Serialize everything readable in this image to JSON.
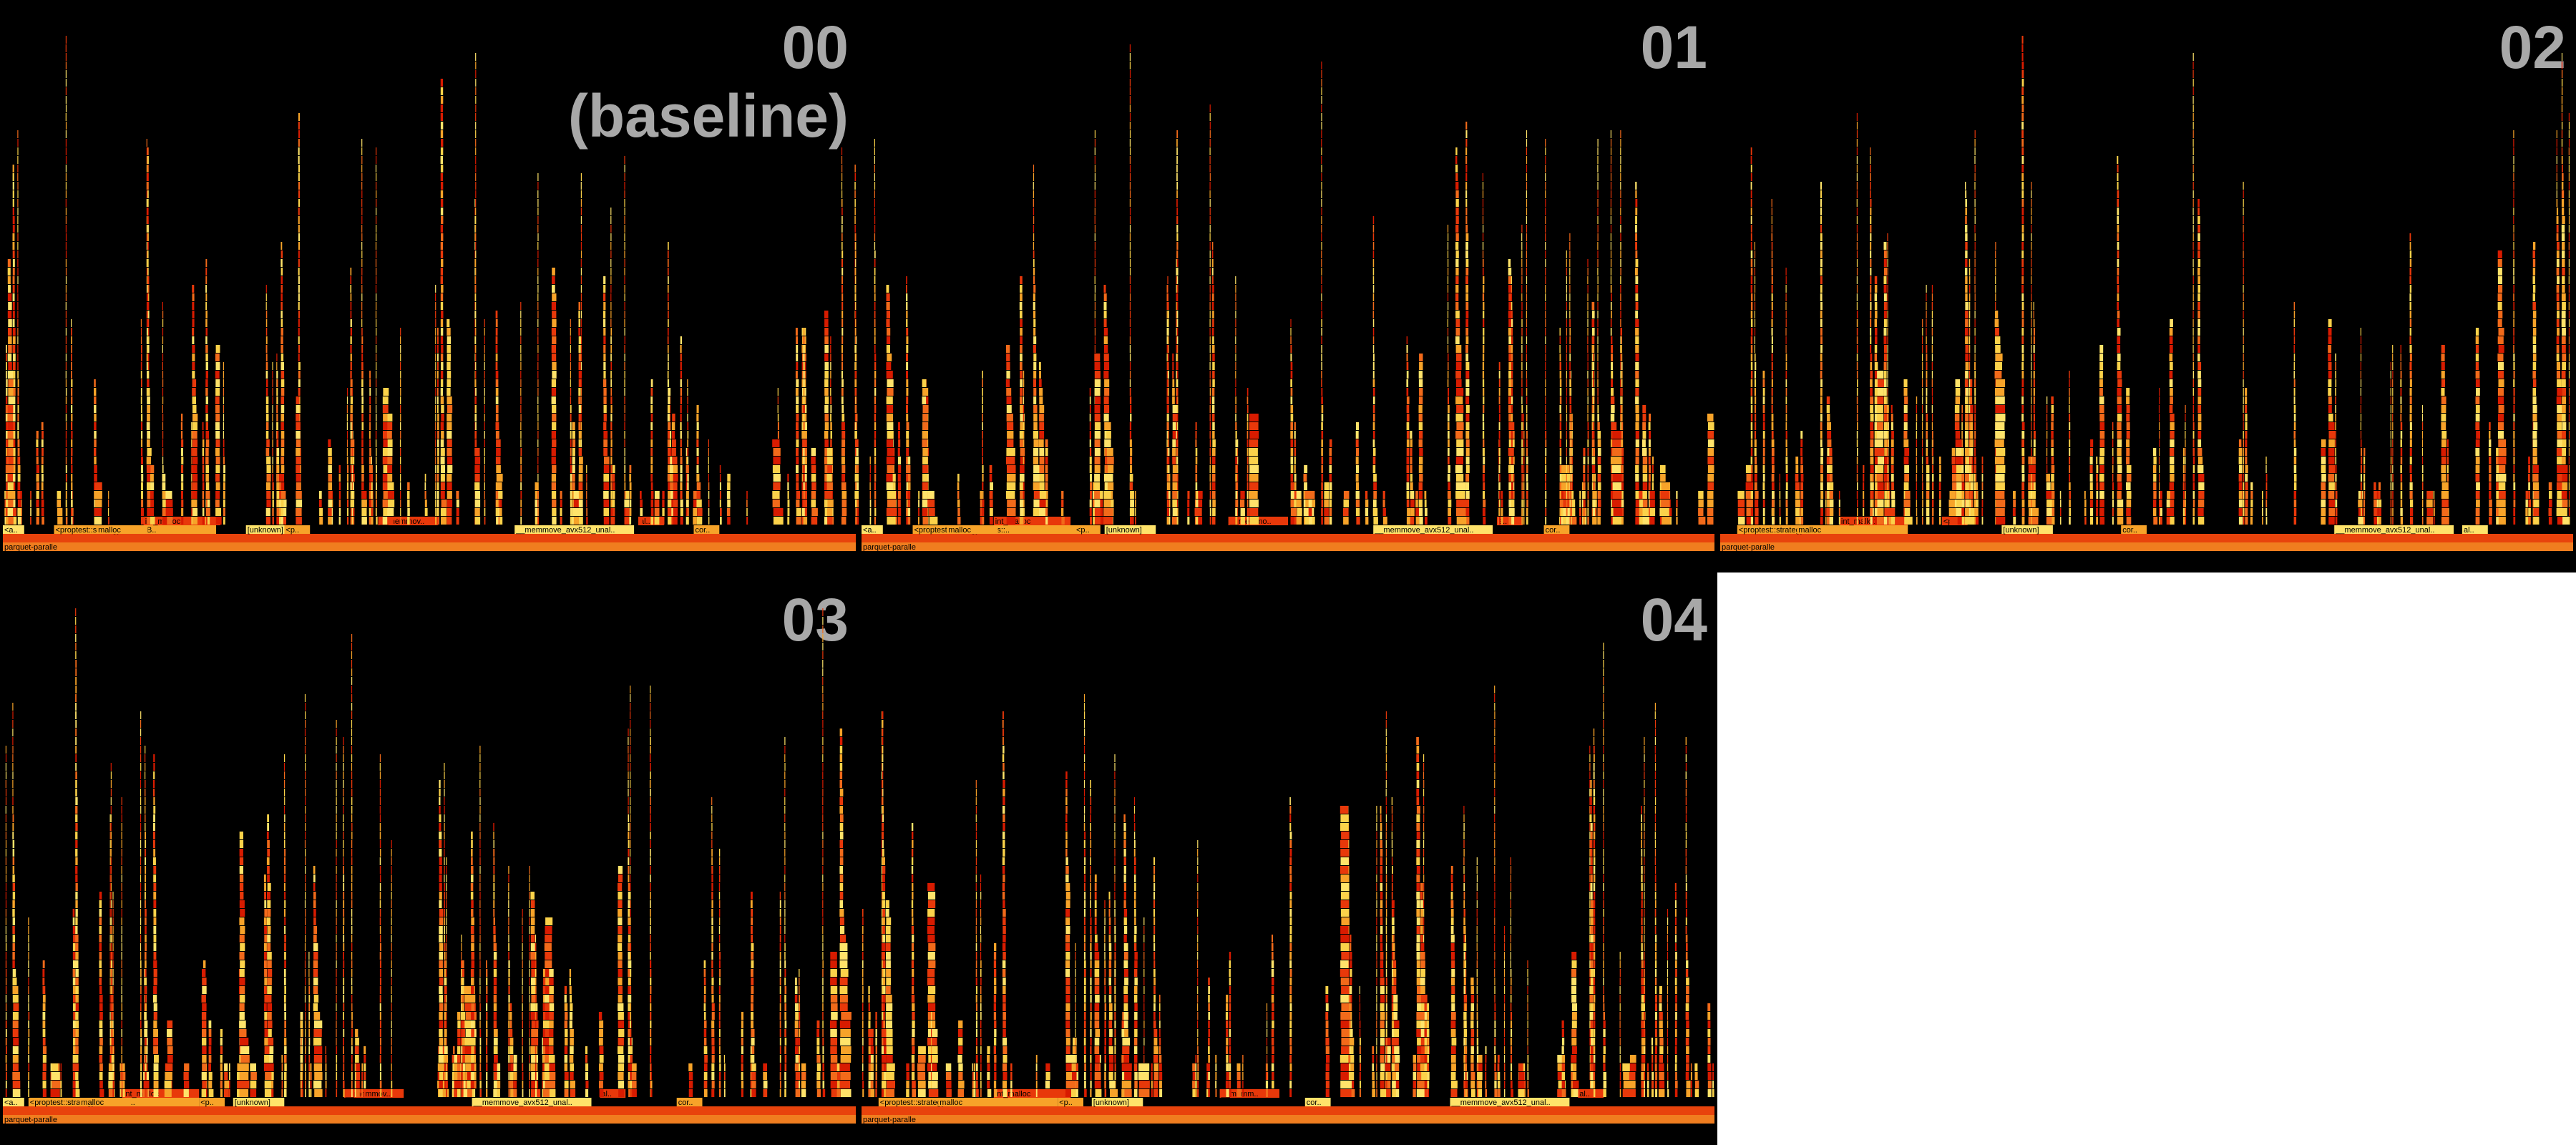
{
  "figure": {
    "background": "#000000",
    "blank_cell_color": "#ffffff",
    "title_color": "#a8a8a8",
    "palette": [
      "#d81b00",
      "#e8380a",
      "#f26a1a",
      "#f7a329",
      "#fbd24a",
      "#ffe36a"
    ]
  },
  "panels": [
    {
      "title": "00\n(baseline)",
      "root_label": "parquet-paralle",
      "frames": [
        {
          "label": "<proptest::strategy::traits::B..",
          "start": 0.06,
          "width": 0.19
        },
        {
          "label": "__memmove_avx512_unal..",
          "start": 0.6,
          "width": 0.14
        },
        {
          "label": "int_malloc",
          "start": 0.165,
          "width": 0.09
        },
        {
          "label": "malloc",
          "start": 0.11,
          "width": 0.06
        },
        {
          "label": "[unknown]",
          "start": 0.285,
          "width": 0.06
        },
        {
          "label": "__memmov..",
          "start": 0.44,
          "width": 0.07
        },
        {
          "label": "<p..",
          "start": 0.33,
          "width": 0.03
        },
        {
          "label": "<a..",
          "start": 0.0,
          "width": 0.025
        },
        {
          "label": "al..",
          "start": 0.745,
          "width": 0.03
        },
        {
          "label": "cor..",
          "start": 0.81,
          "width": 0.03
        }
      ]
    },
    {
      "title": "01",
      "root_label": "parquet-paralle",
      "frames": [
        {
          "label": "<proptest::strategy::traits::..",
          "start": 0.06,
          "width": 0.19
        },
        {
          "label": "__memmove_avx512_unal..",
          "start": 0.6,
          "width": 0.14
        },
        {
          "label": "int_malloc",
          "start": 0.155,
          "width": 0.09
        },
        {
          "label": "malloc",
          "start": 0.1,
          "width": 0.06
        },
        {
          "label": "[unknown]",
          "start": 0.285,
          "width": 0.06
        },
        {
          "label": "__memmo..",
          "start": 0.43,
          "width": 0.07
        },
        {
          "label": "<p..",
          "start": 0.25,
          "width": 0.03
        },
        {
          "label": "<a..",
          "start": 0.0,
          "width": 0.025
        },
        {
          "label": "a..",
          "start": 0.745,
          "width": 0.03
        },
        {
          "label": "cor..",
          "start": 0.8,
          "width": 0.03
        }
      ]
    },
    {
      "title": "02",
      "root_label": "parquet-paralle",
      "frames": [
        {
          "label": "<proptest::strategy::traits::Bo..",
          "start": 0.02,
          "width": 0.2
        },
        {
          "label": "__memmove_avx512_unal..",
          "start": 0.72,
          "width": 0.14
        },
        {
          "label": "int_malloc",
          "start": 0.14,
          "width": 0.08
        },
        {
          "label": "malloc",
          "start": 0.09,
          "width": 0.06
        },
        {
          "label": "[unknown]",
          "start": 0.33,
          "width": 0.06
        },
        {
          "label": "<p..",
          "start": 0.26,
          "width": 0.03
        },
        {
          "label": "cor..",
          "start": 0.47,
          "width": 0.03
        },
        {
          "label": "al..",
          "start": 0.87,
          "width": 0.03
        }
      ]
    },
    {
      "title": "03",
      "root_label": "parquet-paralle",
      "frames": [
        {
          "label": "<proptest::strategy::traits::Bo..",
          "start": 0.03,
          "width": 0.2
        },
        {
          "label": "__memmove_avx512_unal..",
          "start": 0.55,
          "width": 0.14
        },
        {
          "label": "int_malloc",
          "start": 0.14,
          "width": 0.09
        },
        {
          "label": "malloc",
          "start": 0.09,
          "width": 0.06
        },
        {
          "label": "[unknown]",
          "start": 0.27,
          "width": 0.06
        },
        {
          "label": "__memmov..",
          "start": 0.4,
          "width": 0.07
        },
        {
          "label": "<p..",
          "start": 0.23,
          "width": 0.03
        },
        {
          "label": "<a..",
          "start": 0.0,
          "width": 0.025
        },
        {
          "label": "al..",
          "start": 0.7,
          "width": 0.03
        },
        {
          "label": "cor..",
          "start": 0.79,
          "width": 0.03
        }
      ]
    },
    {
      "title": "04",
      "root_label": "parquet-paralle",
      "frames": [
        {
          "label": "<proptest::strategy::traits::Boxe..",
          "start": 0.02,
          "width": 0.21
        },
        {
          "label": "__memmove_avx512_unal..",
          "start": 0.69,
          "width": 0.14
        },
        {
          "label": "int_malloc",
          "start": 0.155,
          "width": 0.09
        },
        {
          "label": "malloc",
          "start": 0.09,
          "width": 0.07
        },
        {
          "label": "[unknown]",
          "start": 0.27,
          "width": 0.06
        },
        {
          "label": "__memm..",
          "start": 0.42,
          "width": 0.07
        },
        {
          "label": "<p..",
          "start": 0.23,
          "width": 0.03
        },
        {
          "label": "cor..",
          "start": 0.52,
          "width": 0.03
        },
        {
          "label": "al..",
          "start": 0.84,
          "width": 0.03
        }
      ]
    }
  ]
}
